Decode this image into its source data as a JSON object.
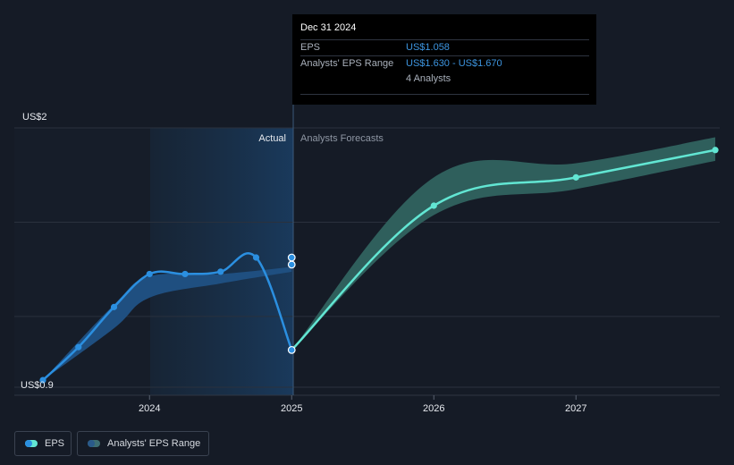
{
  "chart_data": {
    "type": "line",
    "y_axis": {
      "top_label": "US$2",
      "bottom_label": "US$0.9",
      "ylim": [
        0.9,
        2.0
      ]
    },
    "x_axis": {
      "ticks": [
        "2024",
        "2025",
        "2026",
        "2027"
      ],
      "xlim": [
        2023.25,
        2027.98
      ]
    },
    "section_labels": {
      "actual": "Actual",
      "forecast": "Analysts Forecasts"
    },
    "divider_x": 2025.0,
    "series": [
      {
        "name": "EPS",
        "kind": "actual",
        "color": "#2b8fe0",
        "points": [
          [
            2023.25,
            0.93
          ],
          [
            2023.5,
            1.07
          ],
          [
            2023.75,
            1.24
          ],
          [
            2024.0,
            1.38
          ],
          [
            2024.25,
            1.38
          ],
          [
            2024.5,
            1.39
          ],
          [
            2024.75,
            1.45
          ],
          [
            2025.0,
            1.058
          ]
        ]
      },
      {
        "name": "EPS",
        "kind": "forecast",
        "color": "#62e6d3",
        "points": [
          [
            2025.0,
            1.058
          ],
          [
            2026.0,
            1.67
          ],
          [
            2027.0,
            1.79
          ],
          [
            2027.98,
            1.906
          ]
        ]
      }
    ],
    "actual_range_band": {
      "upper": [
        [
          2023.25,
          0.93
        ],
        [
          2023.75,
          1.25
        ],
        [
          2024.0,
          1.37
        ],
        [
          2024.5,
          1.38
        ],
        [
          2025.0,
          1.41
        ]
      ],
      "lower": [
        [
          2023.25,
          0.93
        ],
        [
          2023.75,
          1.15
        ],
        [
          2024.0,
          1.28
        ],
        [
          2024.5,
          1.34
        ],
        [
          2025.0,
          1.39
        ]
      ]
    },
    "forecast_range_band": {
      "upper": [
        [
          2025.0,
          1.058
        ],
        [
          2026.0,
          1.79
        ],
        [
          2027.0,
          1.85
        ],
        [
          2027.98,
          1.96
        ]
      ],
      "lower": [
        [
          2025.0,
          1.058
        ],
        [
          2026.0,
          1.63
        ],
        [
          2027.0,
          1.74
        ],
        [
          2027.98,
          1.86
        ]
      ]
    },
    "highlight_points": [
      1.45,
      1.42
    ]
  },
  "tooltip": {
    "date": "Dec 31 2024",
    "eps_label": "EPS",
    "eps_value": "US$1.058",
    "range_label": "Analysts' EPS Range",
    "range_value": "US$1.630 - US$1.670",
    "analysts": "4 Analysts"
  },
  "legend": {
    "eps": "EPS",
    "range": "Analysts' EPS Range"
  },
  "colors": {
    "actual_line": "#2b8fe0",
    "forecast_line": "#62e6d3",
    "forecast_band": "#2f5f5c",
    "actual_band": "#1f4f80"
  }
}
